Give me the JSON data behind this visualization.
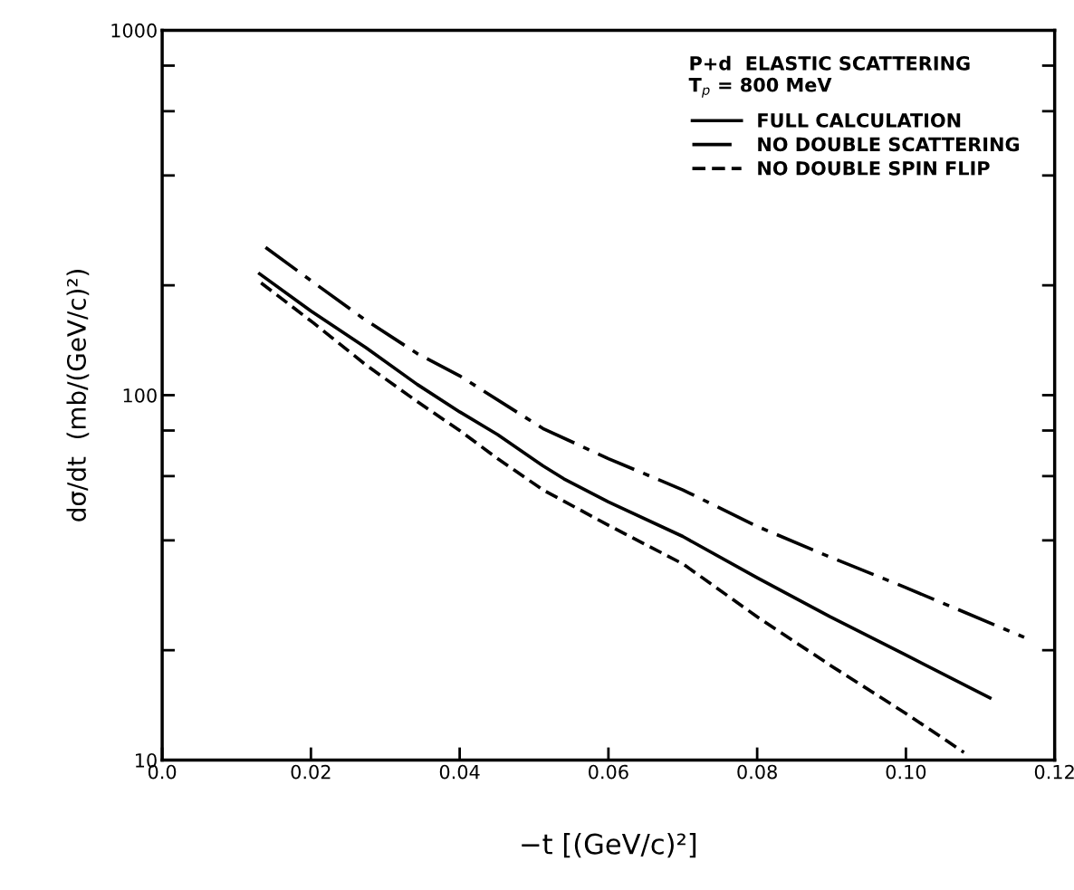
{
  "chart_data": {
    "type": "line",
    "xlabel": "−t [(GeV/c)²]",
    "ylabel": "dσ/dt  (mb/(GeV/c)²)",
    "annotations": [
      "P+d  ELASTIC SCATTERING",
      "T$_{p}$ = 800 MeV"
    ],
    "log": "y",
    "xlim": [
      0.0,
      0.12
    ],
    "xticks": [
      {
        "value": 0.0,
        "label": "0.0"
      },
      {
        "value": 0.02,
        "label": "0.02"
      },
      {
        "value": 0.04,
        "label": "0.04"
      },
      {
        "value": 0.06,
        "label": "0.06"
      },
      {
        "value": 0.08,
        "label": "0.08"
      },
      {
        "value": 0.1,
        "label": "0.10"
      },
      {
        "value": 0.12,
        "label": "0.12"
      }
    ],
    "ylim": [
      10,
      1000
    ],
    "yticks": [
      10,
      {
        "value": 20,
        "label": null
      },
      {
        "value": 40,
        "label": null
      },
      {
        "value": 60,
        "label": null
      },
      {
        "value": 80,
        "label": null
      },
      100,
      {
        "value": 200,
        "label": null
      },
      {
        "value": 400,
        "label": null
      },
      {
        "value": 600,
        "label": null
      },
      {
        "value": 800,
        "label": null
      },
      1000
    ],
    "legend": "top right",
    "grid": false,
    "marker": "none",
    "series": [
      {
        "name": "FULL CALCULATION",
        "color": "#000000",
        "line_style": "solid",
        "x": [
          0.0131,
          0.02,
          0.0274,
          0.0343,
          0.04,
          0.0451,
          0.0512,
          0.054,
          0.06,
          0.07,
          0.08,
          0.0898,
          0.0998,
          0.1113
        ],
        "values": [
          215,
          170,
          135,
          107,
          90,
          78,
          64,
          59,
          51,
          41,
          31.6,
          24.7,
          19.5,
          14.8
        ]
      },
      {
        "name": "NO DOUBLE SCATTERING",
        "color": "#000000",
        "line_style": "dashed",
        "x": [
          0.0139,
          0.0203,
          0.0269,
          0.0343,
          0.04,
          0.0512,
          0.06,
          0.07,
          0.08,
          0.0898,
          0.0998,
          0.1159
        ],
        "values": [
          254,
          204,
          163,
          130,
          113,
          81,
          67,
          55,
          43.7,
          36,
          29.8,
          21.7
        ]
      },
      {
        "name": "NO DOUBLE SPIN FLIP",
        "color": "#000000",
        "line_style": "dotted",
        "x": [
          0.0133,
          0.0203,
          0.0274,
          0.0343,
          0.04,
          0.0451,
          0.0512,
          0.06,
          0.07,
          0.08,
          0.0898,
          0.0998,
          0.1078
        ],
        "values": [
          203,
          158,
          121,
          96,
          80,
          67,
          55,
          44,
          34.5,
          24.7,
          18.2,
          13.5,
          10.5
        ]
      }
    ]
  }
}
